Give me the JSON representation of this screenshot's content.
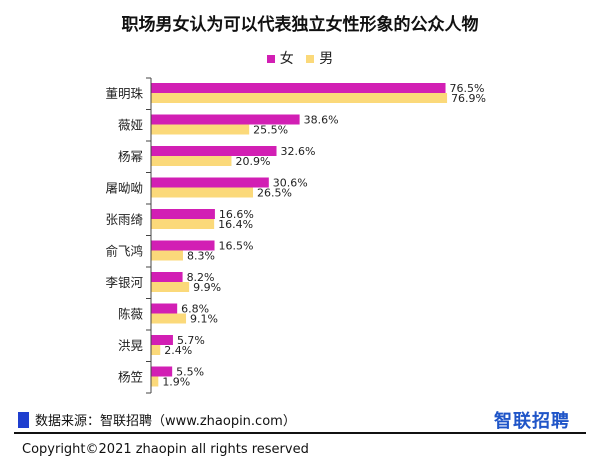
{
  "title": "职场男女认为可以代表独立女性形象的公众人物",
  "legend": {
    "female": {
      "label": "女",
      "color": "#d21fb4"
    },
    "male": {
      "label": "男",
      "color": "#fbd97a"
    }
  },
  "chart_data": {
    "type": "bar",
    "orientation": "horizontal",
    "title": "职场男女认为可以代表独立女性形象的公众人物",
    "categories": [
      "董明珠",
      "薇娅",
      "杨幂",
      "屠呦呦",
      "张雨绮",
      "俞飞鸿",
      "李银河",
      "陈薇",
      "洪晃",
      "杨笠"
    ],
    "series": [
      {
        "name": "女",
        "color": "#d21fb4",
        "values": [
          76.5,
          38.6,
          32.6,
          30.6,
          16.6,
          16.5,
          8.2,
          6.8,
          5.7,
          5.5
        ]
      },
      {
        "name": "男",
        "color": "#fbd97a",
        "values": [
          76.9,
          25.5,
          20.9,
          26.5,
          16.4,
          8.3,
          9.9,
          9.1,
          2.4,
          1.9
        ]
      }
    ],
    "value_suffix": "%",
    "legend_position": "top",
    "grid": false
  },
  "footer": {
    "source": "数据来源：智联招聘（www.zhaopin.com）",
    "logo": "智联招聘",
    "copyright": "Copyright©2021 zhaopin all rights reserved"
  }
}
